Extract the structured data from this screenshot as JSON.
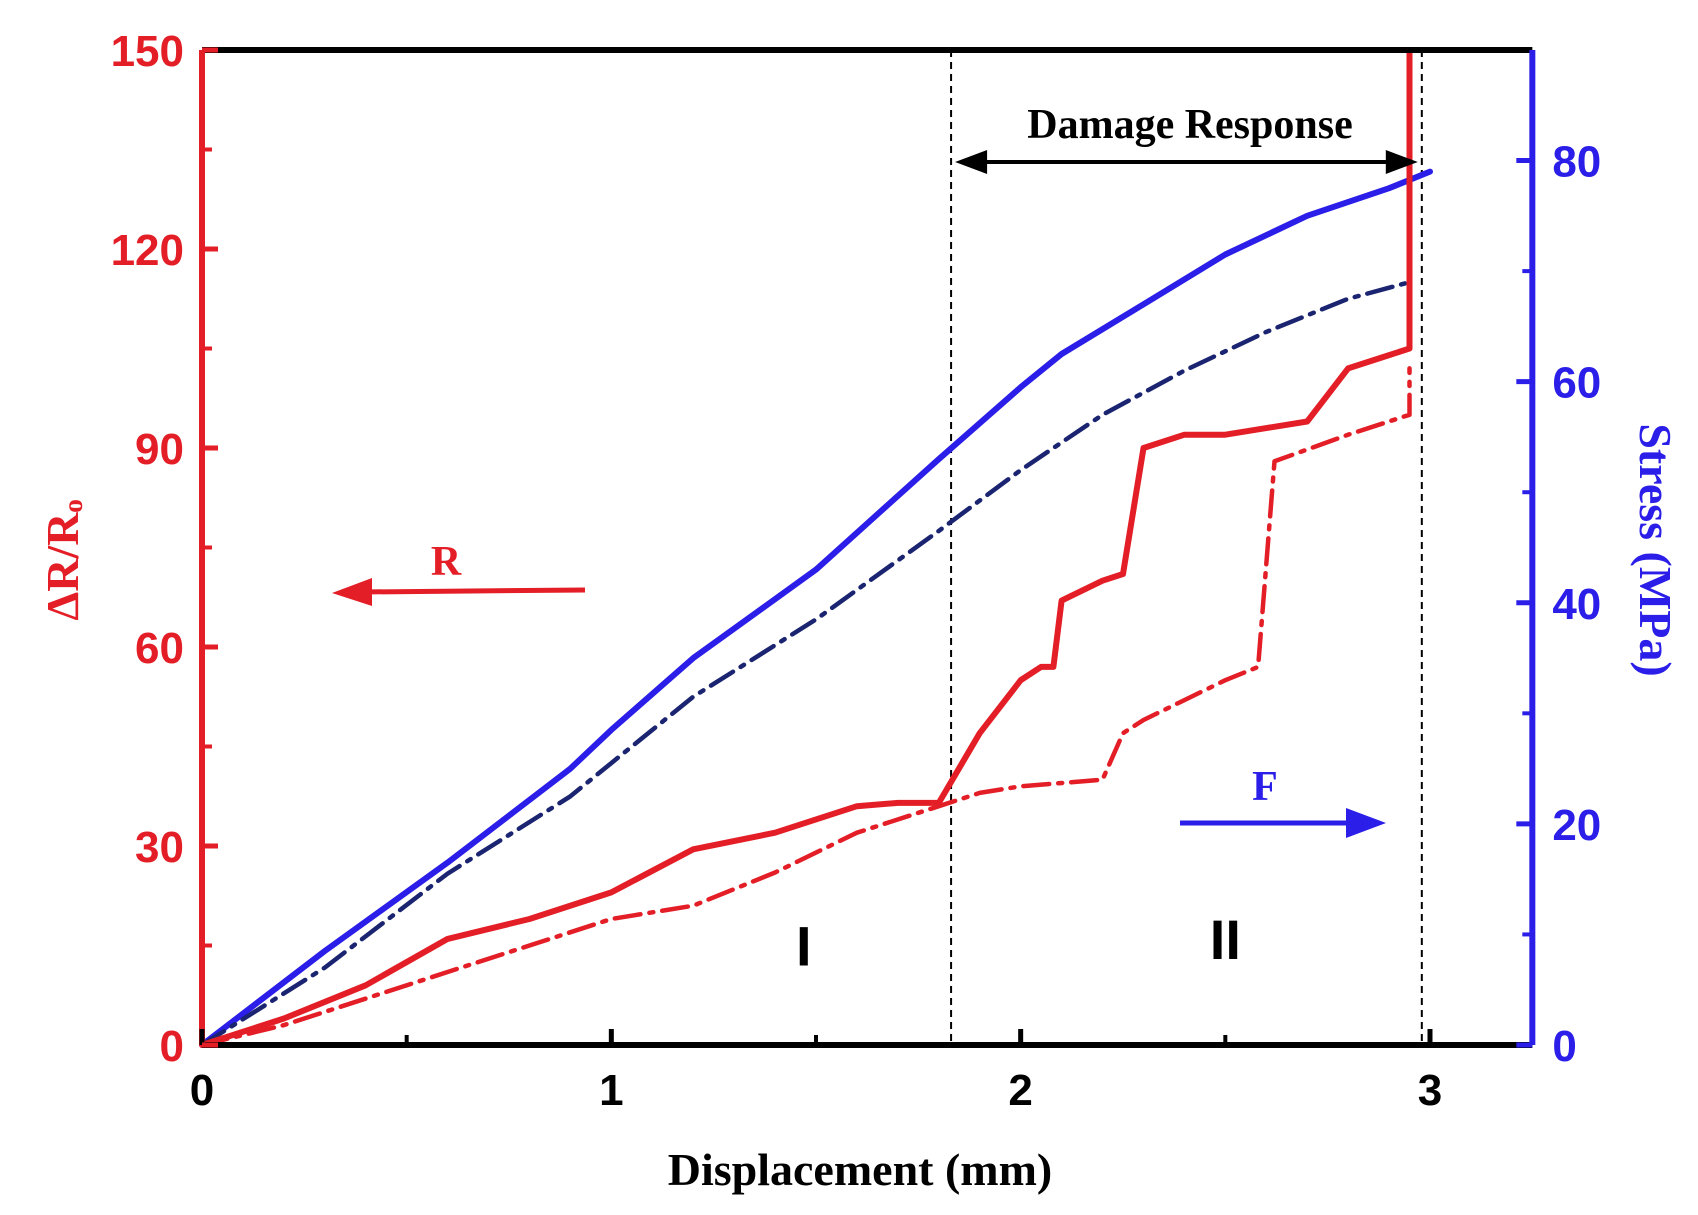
{
  "chart_data": {
    "type": "line",
    "title": "",
    "xlabel": "Displacement (mm)",
    "ylabel_left": "ΔR/Rₒ",
    "ylabel_right": "Stress (MPa)",
    "xlim": [
      0,
      3.25
    ],
    "ylim_left": [
      0,
      150
    ],
    "ylim_right": [
      0,
      90
    ],
    "x_ticks": [
      0,
      1,
      2,
      3
    ],
    "x_tick_labels": [
      "0",
      "1",
      "2",
      "3"
    ],
    "y_left_ticks": [
      0,
      30,
      60,
      90,
      120,
      150
    ],
    "y_left_tick_labels": [
      "0",
      "30",
      "60",
      "90",
      "120",
      "150"
    ],
    "y_right_ticks": [
      0,
      20,
      40,
      60,
      80
    ],
    "y_right_tick_labels": [
      "0",
      "20",
      "40",
      "60",
      "80"
    ],
    "colors": {
      "left_axis": "#e41e26",
      "right_axis": "#2a1ee8",
      "frame": "#000000",
      "dashdot_blue": "#1a2470"
    },
    "series": [
      {
        "name": "Stress (solid)",
        "axis": "right",
        "color": "#2a1ee8",
        "style": "solid",
        "x": [
          0,
          0.3,
          0.6,
          0.9,
          1.0,
          1.2,
          1.5,
          1.65,
          1.8,
          2.0,
          2.1,
          2.3,
          2.5,
          2.7,
          2.9,
          3.0
        ],
        "y": [
          0,
          8.5,
          16.5,
          25,
          28.5,
          35,
          43,
          48,
          53,
          59.5,
          62.5,
          67,
          71.5,
          75,
          77.5,
          79
        ]
      },
      {
        "name": "Stress (dash-dot)",
        "axis": "right",
        "color": "#1a2470",
        "style": "dashdot",
        "x": [
          0,
          0.3,
          0.6,
          0.9,
          1.0,
          1.2,
          1.5,
          1.8,
          2.0,
          2.2,
          2.4,
          2.6,
          2.8,
          2.95
        ],
        "y": [
          0,
          7,
          15.5,
          22.5,
          25.5,
          31.5,
          38.5,
          46.5,
          52,
          57,
          61,
          64.5,
          67.5,
          69
        ]
      },
      {
        "name": "ΔR/Rₒ (solid)",
        "axis": "left",
        "color": "#e41e26",
        "style": "solid",
        "x": [
          0,
          0.2,
          0.4,
          0.6,
          0.8,
          1.0,
          1.2,
          1.4,
          1.6,
          1.7,
          1.8,
          1.9,
          2.0,
          2.05,
          2.08,
          2.1,
          2.2,
          2.25,
          2.3,
          2.4,
          2.5,
          2.6,
          2.7,
          2.75,
          2.8,
          2.9,
          2.95,
          2.95
        ],
        "y": [
          0,
          4,
          9,
          16,
          19,
          23,
          29.5,
          32,
          36,
          36.5,
          36.5,
          47,
          55,
          57,
          57,
          67,
          70,
          71,
          90,
          92,
          92,
          93,
          94,
          98,
          102,
          104,
          105,
          150
        ]
      },
      {
        "name": "ΔR/Rₒ (dash-dot)",
        "axis": "left",
        "color": "#e41e26",
        "style": "dashdot",
        "x": [
          0,
          0.2,
          0.4,
          0.6,
          0.8,
          1.0,
          1.2,
          1.4,
          1.6,
          1.8,
          1.9,
          2.0,
          2.2,
          2.25,
          2.3,
          2.4,
          2.5,
          2.58,
          2.62,
          2.8,
          2.95,
          2.95
        ],
        "y": [
          0,
          3,
          7,
          11,
          15,
          19,
          21,
          26,
          32,
          36,
          38,
          39,
          40,
          47,
          49,
          52,
          55,
          57,
          88,
          92,
          95,
          102
        ]
      }
    ],
    "annotations": {
      "damage_response": "Damage Response",
      "damage_range": [
        1.83,
        2.98
      ],
      "region_labels": [
        {
          "text": "I",
          "x": 1.47,
          "y_left": 12
        },
        {
          "text": "II",
          "x": 2.5,
          "y_left": 13
        }
      ],
      "r_arrow_label": "R",
      "f_arrow_label": "F",
      "vertical_dashed_lines_x": [
        1.83,
        2.98
      ]
    }
  }
}
